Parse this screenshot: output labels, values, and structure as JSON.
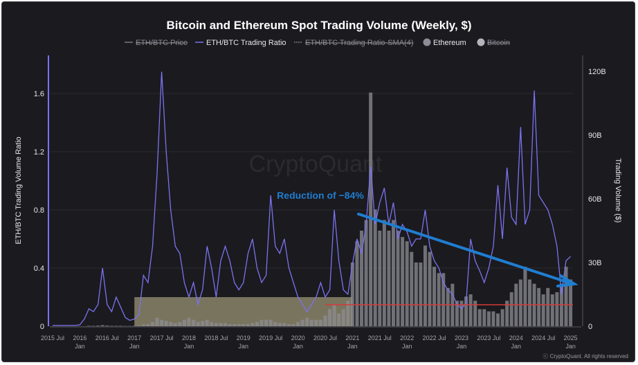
{
  "chart_data": {
    "type": "bar+line",
    "title": "Bitcoin and Ethereum Spot Trading Volume (Weekly, $)",
    "legend": {
      "placement": "top",
      "items": [
        {
          "label": "ETH/BTC Price",
          "kind": "line",
          "color": "#8a8a8a",
          "hidden": true
        },
        {
          "label": "ETH/BTC Trading Ratio",
          "kind": "line",
          "color": "#7b73f0",
          "hidden": false
        },
        {
          "label": "ETH/BTC Trading Ratio-SMA(4)",
          "kind": "line",
          "color": "#6a6a6a",
          "hidden": true
        },
        {
          "label": "Ethereum",
          "kind": "dot",
          "color": "#8e8d96",
          "hidden": false
        },
        {
          "label": "Bitcoin",
          "kind": "dot",
          "color": "#b5b4bc",
          "hidden": true
        }
      ]
    },
    "y_left": {
      "label": "ETH/BTC Trading Volume Ratio",
      "ticks": [
        "0",
        "0.4",
        "0.8",
        "1.2",
        "1.6"
      ],
      "range": [
        0,
        1.85
      ]
    },
    "y_right": {
      "label": "Trading Volume ($)",
      "ticks": [
        "0",
        "30B",
        "60B",
        "90B",
        "120B"
      ],
      "range": [
        0,
        120
      ]
    },
    "x_ticks": [
      [
        "2015 Jul",
        ""
      ],
      [
        "2016",
        "Jan"
      ],
      [
        "2016 Jul",
        ""
      ],
      [
        "2017",
        "Jan"
      ],
      [
        "2017 Jul",
        ""
      ],
      [
        "2018",
        "Jan"
      ],
      [
        "2018 Jul",
        ""
      ],
      [
        "2019",
        "Jan"
      ],
      [
        "2019 Jul",
        ""
      ],
      [
        "2020",
        "Jan"
      ],
      [
        "2020 Jul",
        ""
      ],
      [
        "2021",
        "Jan"
      ],
      [
        "2021 Jul",
        ""
      ],
      [
        "2022",
        "Jan"
      ],
      [
        "2022 Jul",
        ""
      ],
      [
        "2023",
        "Jan"
      ],
      [
        "2023 Jul",
        ""
      ],
      [
        "2024",
        "Jan"
      ],
      [
        "2024 Jul",
        ""
      ],
      [
        "2025",
        "Jan"
      ]
    ],
    "x_start": "2015-07",
    "series": [
      {
        "name": "ETH/BTC Trading Ratio",
        "axis": "left",
        "type": "line",
        "color": "#7b73f0",
        "values": [
          0.005,
          0.005,
          0.005,
          0.005,
          0.005,
          0.005,
          0.01,
          0.05,
          0.12,
          0.1,
          0.15,
          0.4,
          0.15,
          0.1,
          0.2,
          0.13,
          0.06,
          0.04,
          0.05,
          0.08,
          0.35,
          0.3,
          0.55,
          1.05,
          1.75,
          1.2,
          0.8,
          0.55,
          0.5,
          0.3,
          0.2,
          0.3,
          0.15,
          0.25,
          0.55,
          0.4,
          0.2,
          0.45,
          0.55,
          0.45,
          0.3,
          0.25,
          0.3,
          0.5,
          0.6,
          0.4,
          0.3,
          0.35,
          0.9,
          0.55,
          0.5,
          0.6,
          0.4,
          0.3,
          0.2,
          0.15,
          0.1,
          0.15,
          0.2,
          0.3,
          0.2,
          0.25,
          0.8,
          0.45,
          0.25,
          0.22,
          0.43,
          0.6,
          0.5,
          0.7,
          1.1,
          0.7,
          0.85,
          0.95,
          0.7,
          0.85,
          0.6,
          0.7,
          0.65,
          0.55,
          0.6,
          0.6,
          0.8,
          0.55,
          0.45,
          0.4,
          0.3,
          0.25,
          0.22,
          0.15,
          0.12,
          0.16,
          0.6,
          0.45,
          0.38,
          0.3,
          0.4,
          0.55,
          0.97,
          0.6,
          1.09,
          0.75,
          0.7,
          1.37,
          0.7,
          0.8,
          1.62,
          0.9,
          0.85,
          0.8,
          0.7,
          0.55,
          0.22,
          0.45,
          0.48
        ]
      },
      {
        "name": "Ethereum",
        "axis": "right",
        "type": "bar",
        "color": "#8e8d96",
        "values": [
          0,
          0,
          0,
          0,
          0,
          0,
          0,
          0,
          0.2,
          0.2,
          0.3,
          0.5,
          0.3,
          0.2,
          0.2,
          0.2,
          0.1,
          0.1,
          0.2,
          0.3,
          0.8,
          1,
          2,
          4,
          3,
          2.5,
          2,
          1.5,
          2,
          3,
          4,
          3,
          2,
          2.5,
          3,
          2,
          1.5,
          1.5,
          1.5,
          1,
          1,
          1,
          1,
          1,
          1.5,
          2,
          3,
          3,
          3,
          2,
          1.5,
          1.5,
          1,
          1,
          2,
          3,
          4,
          3,
          3,
          3,
          5,
          8,
          10,
          6,
          8,
          12,
          30,
          40,
          45,
          50,
          110,
          55,
          45,
          50,
          45,
          50,
          45,
          42,
          40,
          35,
          30,
          30,
          38,
          35,
          28,
          25,
          25,
          18,
          20,
          12,
          12,
          14,
          15,
          12,
          8,
          8,
          7,
          7,
          6,
          8,
          12,
          16,
          20,
          22,
          28,
          22,
          20,
          18,
          15,
          18,
          15,
          16,
          20,
          28,
          22
        ]
      }
    ],
    "annotations": {
      "text": "Reduction of −84%",
      "color": "#1f7ed0",
      "highlight_color": "#fdf1b4",
      "reference_line_color": "#d63a3a",
      "watermark": "CryptoQuant"
    },
    "copyright": "ⓒ CryptoQuant. All rights reserved"
  }
}
